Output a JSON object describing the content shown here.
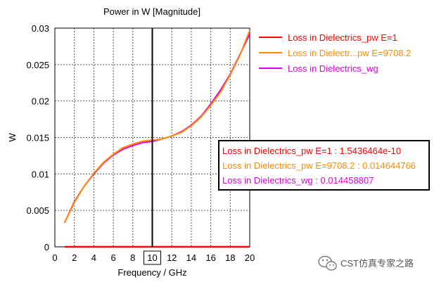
{
  "chart_data": {
    "type": "line",
    "title": "Power in W [Magnitude]",
    "xlabel": "Frequency / GHz",
    "ylabel": "W",
    "xlim": [
      0,
      20
    ],
    "ylim": [
      0,
      0.03
    ],
    "x_ticks": [
      "0",
      "2",
      "4",
      "6",
      "8",
      "10",
      "12",
      "14",
      "16",
      "18",
      "20"
    ],
    "y_ticks": [
      "0",
      "0.005",
      "0.01",
      "0.015",
      "0.02",
      "0.025",
      "0.03"
    ],
    "grid": true,
    "legend_position": "right",
    "marker": {
      "x": 10,
      "label": "10"
    },
    "series": [
      {
        "name": "Loss in Dielectrics_pw E=1",
        "color": "#ff0000",
        "x": [
          1,
          20
        ],
        "y": [
          0,
          0
        ]
      },
      {
        "name": "Loss in Dielectr...pw E=9708.2",
        "color": "#ff8c00",
        "x": [
          1,
          2,
          3,
          4,
          5,
          6,
          7,
          8,
          9,
          10,
          11,
          12,
          13,
          14,
          15,
          16,
          17,
          18,
          19,
          20
        ],
        "y": [
          0.0033,
          0.0061,
          0.0083,
          0.0101,
          0.0116,
          0.0127,
          0.0136,
          0.0141,
          0.0145,
          0.01464,
          0.0148,
          0.0152,
          0.0157,
          0.0166,
          0.0178,
          0.0194,
          0.0212,
          0.0236,
          0.0263,
          0.0297
        ]
      },
      {
        "name": "Loss in Dielectrics_wg",
        "color": "#e000e0",
        "x": [
          1,
          2,
          3,
          4,
          5,
          6,
          7,
          8,
          9,
          10,
          11,
          12,
          13,
          14,
          15,
          16,
          17,
          18,
          19,
          20
        ],
        "y": [
          0.0033,
          0.0062,
          0.0083,
          0.01,
          0.0115,
          0.0126,
          0.0134,
          0.0139,
          0.0143,
          0.01446,
          0.0148,
          0.0152,
          0.0158,
          0.0167,
          0.0179,
          0.0196,
          0.0215,
          0.0237,
          0.0264,
          0.0292
        ]
      }
    ],
    "readout": [
      {
        "text": "Loss in Dielectrics_pw E=1 : 1.5436464e-10",
        "color": "#ff0000"
      },
      {
        "text": "Loss in Dielectrics_pw E=9708.2 : 0.014644766",
        "color": "#ff8c00"
      },
      {
        "text": "Loss in Dielectrics_wg : 0.014458807",
        "color": "#e000e0"
      }
    ]
  },
  "watermark": {
    "text": "CST仿真专家之路",
    "icon": "wechat-icon"
  }
}
